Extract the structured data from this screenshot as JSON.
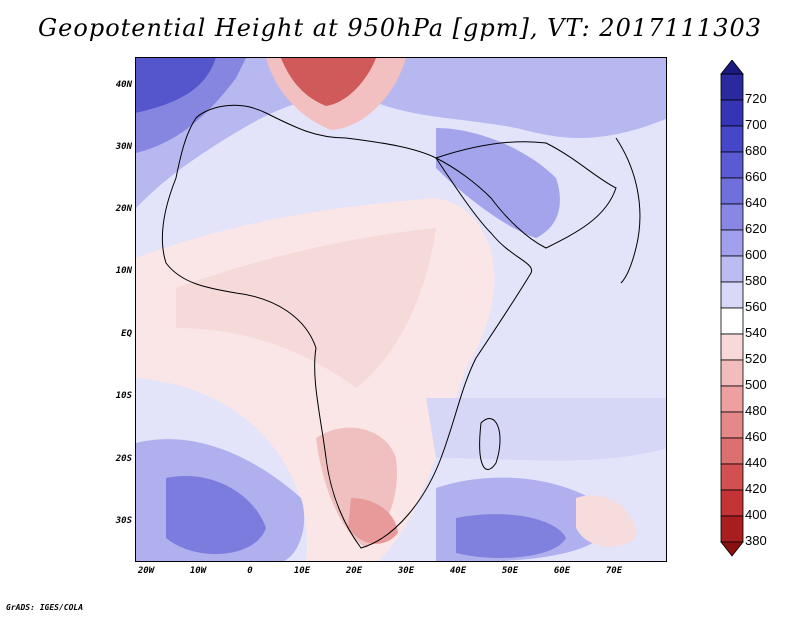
{
  "title": "Geopotential Height at 950hPa [gpm], VT: 2017111303",
  "credit": "GrADS: IGES/COLA",
  "lat_labels": [
    "40N",
    "30N",
    "20N",
    "10N",
    "EQ",
    "10S",
    "20S",
    "30S"
  ],
  "lon_labels": [
    "20W",
    "10W",
    "0",
    "10E",
    "20E",
    "30E",
    "40E",
    "50E",
    "60E",
    "70E"
  ],
  "colorbar": {
    "levels": [
      "720",
      "700",
      "680",
      "660",
      "640",
      "620",
      "600",
      "580",
      "560",
      "540",
      "520",
      "500",
      "480",
      "460",
      "440",
      "420",
      "400",
      "380"
    ],
    "colors": [
      "#2a2a9e",
      "#3434b4",
      "#4646c8",
      "#5a5ad2",
      "#7070dc",
      "#8888e4",
      "#a0a0ec",
      "#bcbcf2",
      "#d8d8f8",
      "#ffffff",
      "#f8d8d8",
      "#f2bcbc",
      "#eca0a0",
      "#e48888",
      "#dc7070",
      "#d25050",
      "#c43434",
      "#a81e1e"
    ]
  }
}
